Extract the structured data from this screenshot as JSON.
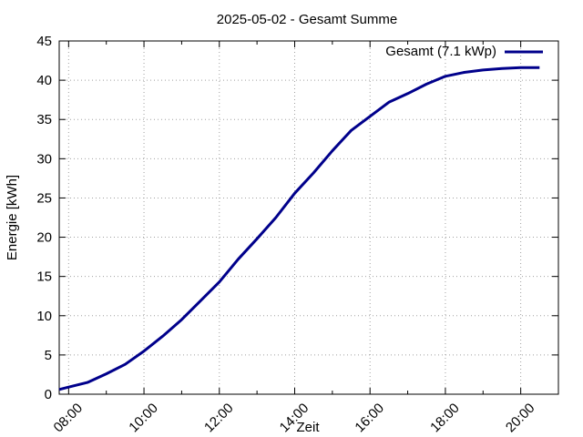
{
  "chart_data": {
    "type": "line",
    "title": "2025-05-02 - Gesamt Summe",
    "xlabel": "Zeit",
    "ylabel": "Energie [kWh]",
    "xlim": [
      "07:45",
      "21:00"
    ],
    "ylim": [
      0,
      45
    ],
    "x_ticks": [
      "08:00",
      "10:00",
      "12:00",
      "14:00",
      "16:00",
      "18:00",
      "20:00"
    ],
    "y_ticks": [
      0,
      5,
      10,
      15,
      20,
      25,
      30,
      35,
      40,
      45
    ],
    "grid": true,
    "legend_position": "top-right",
    "series": [
      {
        "name": "Gesamt (7.1 kWp)",
        "color": "#00008b",
        "x": [
          "07:45",
          "08:00",
          "08:30",
          "09:00",
          "09:30",
          "10:00",
          "10:30",
          "11:00",
          "11:30",
          "12:00",
          "12:30",
          "13:00",
          "13:30",
          "14:00",
          "14:30",
          "15:00",
          "15:30",
          "16:00",
          "16:30",
          "17:00",
          "17:30",
          "18:00",
          "18:30",
          "19:00",
          "19:30",
          "20:00",
          "20:30"
        ],
        "y": [
          0.6,
          0.9,
          1.5,
          2.6,
          3.8,
          5.5,
          7.4,
          9.5,
          11.9,
          14.3,
          17.2,
          19.8,
          22.5,
          25.6,
          28.2,
          31.0,
          33.6,
          35.4,
          37.2,
          38.3,
          39.5,
          40.5,
          41.0,
          41.3,
          41.5,
          41.6,
          41.6
        ]
      }
    ]
  }
}
